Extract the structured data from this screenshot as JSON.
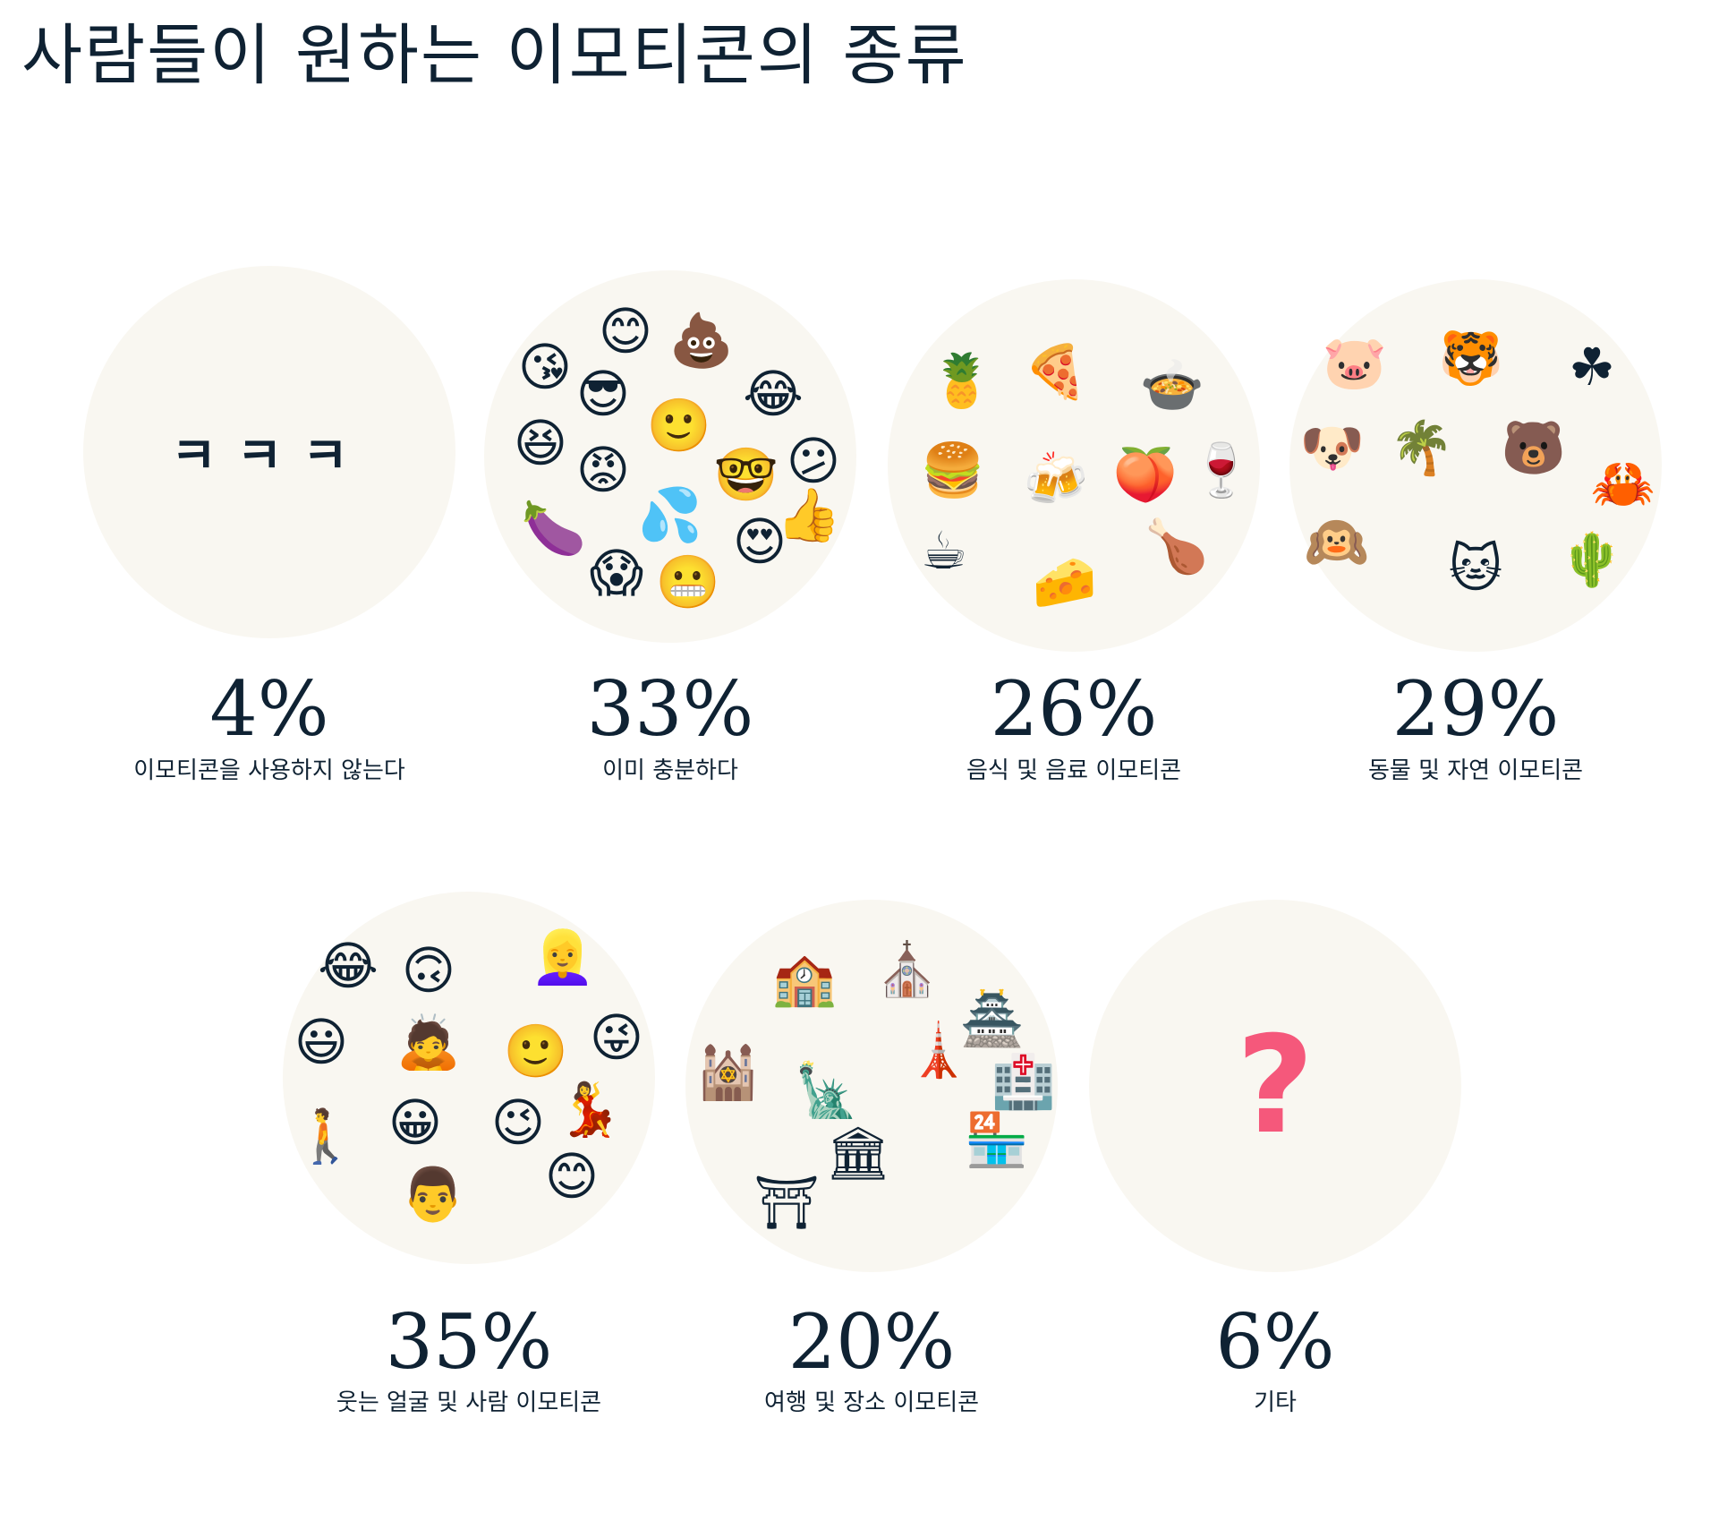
{
  "title": "사람들이 원하는 이모티콘의 종류",
  "colors": {
    "text": "#0f2233",
    "circle_bg": "#f9f7f1",
    "question_mark": "#f5587b"
  },
  "categories": [
    {
      "percent": "4%",
      "label": "이모티콘을 사용하지 않는다",
      "center_text": "ㅋㅋㅋ",
      "icons": []
    },
    {
      "percent": "33%",
      "label": "이미 충분하다",
      "icons": [
        "😊",
        "💩",
        "😘",
        "😎",
        "😂",
        "🙂",
        "😆",
        "😡",
        "🤓",
        "😕",
        "🍆",
        "💦",
        "👍",
        "😱",
        "😬",
        "😍"
      ]
    },
    {
      "percent": "26%",
      "label": "음식 및 음료 이모티콘",
      "icons": [
        "🍍",
        "🍕",
        "🍲",
        "🍔",
        "🍻",
        "🍑",
        "🍷",
        "☕",
        "🧀",
        "🍗"
      ]
    },
    {
      "percent": "29%",
      "label": "동물 및 자연 이모티콘",
      "icons": [
        "🐷",
        "🐯",
        "☘",
        "🐶",
        "🌴",
        "🐻",
        "🦀",
        "🙉",
        "🐱",
        "🌵"
      ]
    },
    {
      "percent": "35%",
      "label": "웃는 얼굴 및 사람 이모티콘",
      "icons": [
        "😂",
        "🙃",
        "👱‍♀️",
        "😃",
        "🙇",
        "🙂",
        "😜",
        "🚶",
        "😀",
        "😉",
        "💃",
        "👨",
        "😊"
      ]
    },
    {
      "percent": "20%",
      "label": "여행 및 장소 이모티콘",
      "icons": [
        "🏫",
        "⛪",
        "🏯",
        "🕍",
        "🗽",
        "🗼",
        "🏪",
        "🏛",
        "🏥",
        "⛩"
      ]
    },
    {
      "percent": "6%",
      "label": "기타",
      "center_text": "?",
      "icons": []
    }
  ]
}
